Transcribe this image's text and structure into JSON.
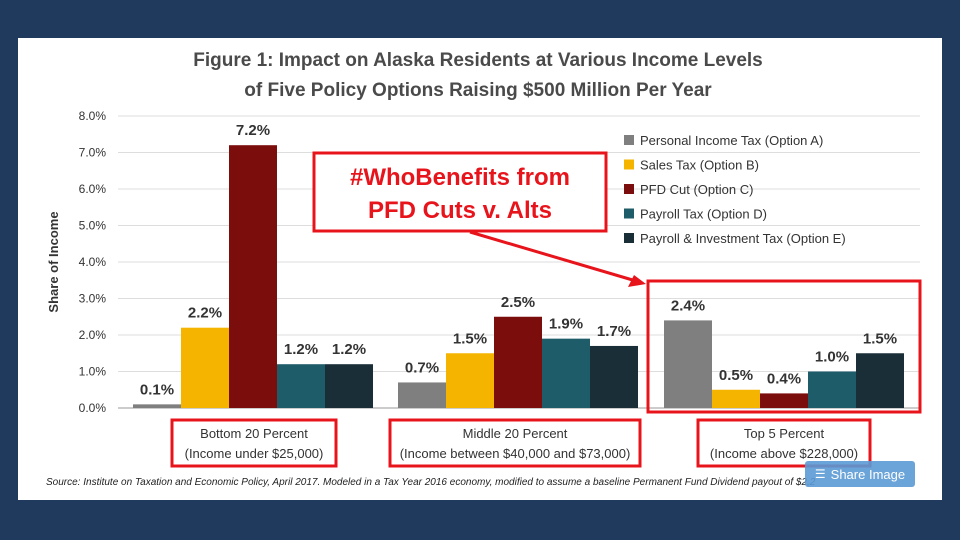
{
  "chart_data": {
    "type": "bar",
    "title_line1": "Figure 1: Impact on Alaska Residents at Various Income Levels",
    "title_line2": "of Five Policy Options Raising $500 Million Per Year",
    "ylabel": "Share of Income",
    "xlabel": "",
    "ylim": [
      0,
      8
    ],
    "yticks": [
      "0.0%",
      "1.0%",
      "2.0%",
      "3.0%",
      "4.0%",
      "5.0%",
      "6.0%",
      "7.0%",
      "8.0%"
    ],
    "grid": true,
    "legend_position": "top-right",
    "categories": [
      {
        "line1": "Bottom 20 Percent",
        "line2": "(Income under $25,000)"
      },
      {
        "line1": "Middle 20 Percent",
        "line2": "(Income between $40,000 and $73,000)"
      },
      {
        "line1": "Top 5 Percent",
        "line2": "(Income above $228,000)"
      }
    ],
    "series": [
      {
        "name": "Personal Income Tax (Option A)",
        "color": "#7f7f7f",
        "values": [
          0.1,
          0.7,
          2.4
        ],
        "labels": [
          "0.1%",
          "0.7%",
          "2.4%"
        ]
      },
      {
        "name": "Sales Tax (Option B)",
        "color": "#f4b400",
        "values": [
          2.2,
          1.5,
          0.5
        ],
        "labels": [
          "2.2%",
          "1.5%",
          "0.5%"
        ]
      },
      {
        "name": "PFD Cut (Option C)",
        "color": "#7b0d0d",
        "values": [
          7.2,
          2.5,
          0.4
        ],
        "labels": [
          "7.2%",
          "2.5%",
          "0.4%"
        ]
      },
      {
        "name": "Payroll Tax (Option D)",
        "color": "#1f5c6a",
        "values": [
          1.2,
          1.9,
          1.0
        ],
        "labels": [
          "1.2%",
          "1.9%",
          "1.0%"
        ]
      },
      {
        "name": "Payroll & Investment Tax (Option E)",
        "color": "#1a2e38",
        "values": [
          1.2,
          1.7,
          1.5
        ],
        "labels": [
          "1.2%",
          "1.7%",
          "1.5%"
        ]
      }
    ]
  },
  "callout": {
    "line1": "#WhoBenefits from",
    "line2": "PFD Cuts v. Alts"
  },
  "source": "Source: Institute on Taxation and Economic Policy, April 2017.  Modeled in a Tax Year 2016 economy, modified to assume a baseline Permanent Fund Dividend payout of $2,2",
  "share_button": {
    "label": "Share Image"
  },
  "colors": {
    "highlight": "#e8141b",
    "frame": "#1f3a5c"
  }
}
